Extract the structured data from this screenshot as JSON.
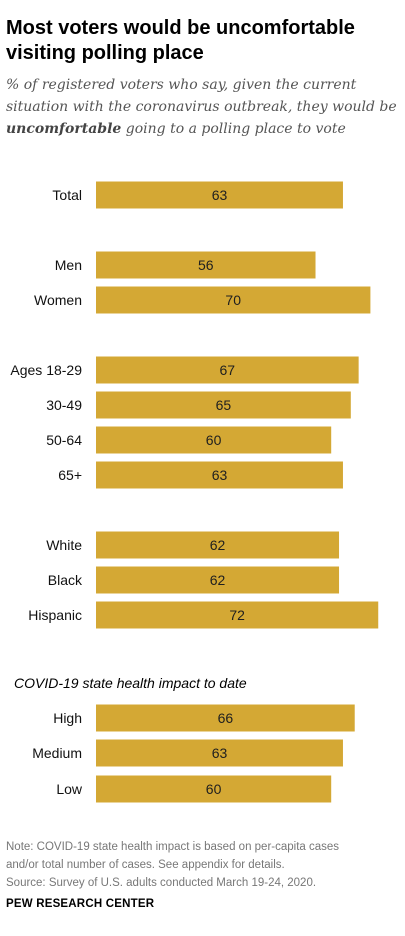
{
  "title": "Most voters would be uncomfortable visiting polling place",
  "subtitle": {
    "before": "% of registered voters who say, given the current situation with the coronavirus outbreak, they would be ",
    "emphasis": "uncomfortable",
    "after": " going to a polling place to vote"
  },
  "group_heading": "COVID-19 state health impact to date",
  "notes": {
    "note_line1": "Note: COVID-19 state health impact is based on per-capita cases",
    "note_line2": "and/or total number of cases. See appendix for details.",
    "source": "Source: Survey of U.S. adults conducted March 19-24, 2020."
  },
  "footer": "PEW RESEARCH CENTER",
  "colors": {
    "bar": "#d4a834",
    "bar_label": "#1f1f1f",
    "category_label": "#111111"
  },
  "chart_data": {
    "type": "bar",
    "orientation": "horizontal",
    "xlim": [
      0,
      100
    ],
    "categories": [
      "Total",
      "Men",
      "Women",
      "Ages 18-29",
      "30-49",
      "50-64",
      "65+",
      "White",
      "Black",
      "Hispanic",
      "High",
      "Medium",
      "Low"
    ],
    "values": [
      63,
      56,
      70,
      67,
      65,
      60,
      63,
      62,
      62,
      72,
      66,
      63,
      60
    ]
  }
}
